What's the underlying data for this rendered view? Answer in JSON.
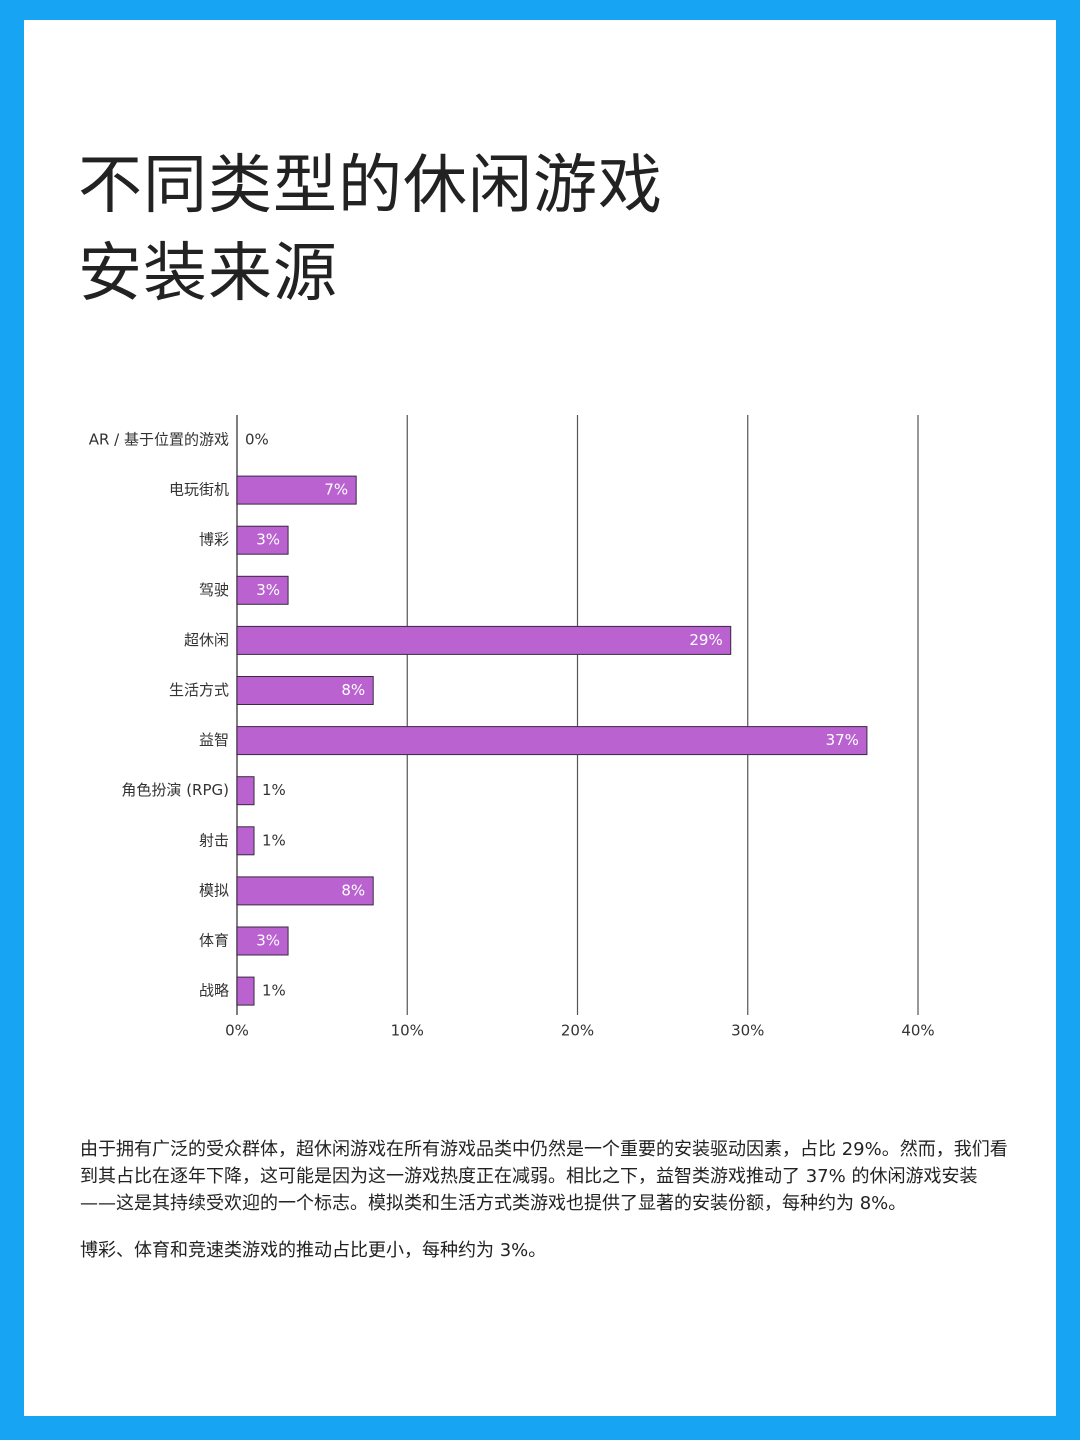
{
  "chart_data": {
    "type": "barh",
    "title": "不同类型的休闲游戏\n安装来源",
    "categories": [
      "AR / 基于位置的游戏",
      "电玩街机",
      "博彩",
      "驾驶",
      "超休闲",
      "生活方式",
      "益智",
      "角色扮演 (RPG)",
      "射击",
      "模拟",
      "体育",
      "战略"
    ],
    "values": [
      0,
      7,
      3,
      3,
      29,
      8,
      37,
      1,
      1,
      8,
      3,
      1
    ],
    "value_labels": [
      "0%",
      "7%",
      "3%",
      "3%",
      "29%",
      "8%",
      "37%",
      "1%",
      "1%",
      "8%",
      "3%",
      "1%"
    ],
    "color": "#b962d0",
    "xlim": [
      0,
      40
    ],
    "xticks": [
      {
        "value": 0,
        "label": "0%"
      },
      {
        "value": 10,
        "label": "10%"
      },
      {
        "value": 20,
        "label": "20%"
      },
      {
        "value": 30,
        "label": "30%"
      },
      {
        "value": 40,
        "label": "40%"
      }
    ],
    "grid": true
  },
  "paragraphs": [
    "由于拥有广泛的受众群体，超休闲游戏在所有游戏品类中仍然是一个重要的安装驱动因素，占比 29%。然而，我们看到其占比在逐年下降，这可能是因为这一游戏热度正在减弱。相比之下，益智类游戏推动了 37% 的休闲游戏安装——这是其持续受欢迎的一个标志。模拟类和生活方式类游戏也提供了显著的安装份额，每种约为 8%。",
    "博彩、体育和竞速类游戏的推动占比更小，每种约为 3%。"
  ]
}
